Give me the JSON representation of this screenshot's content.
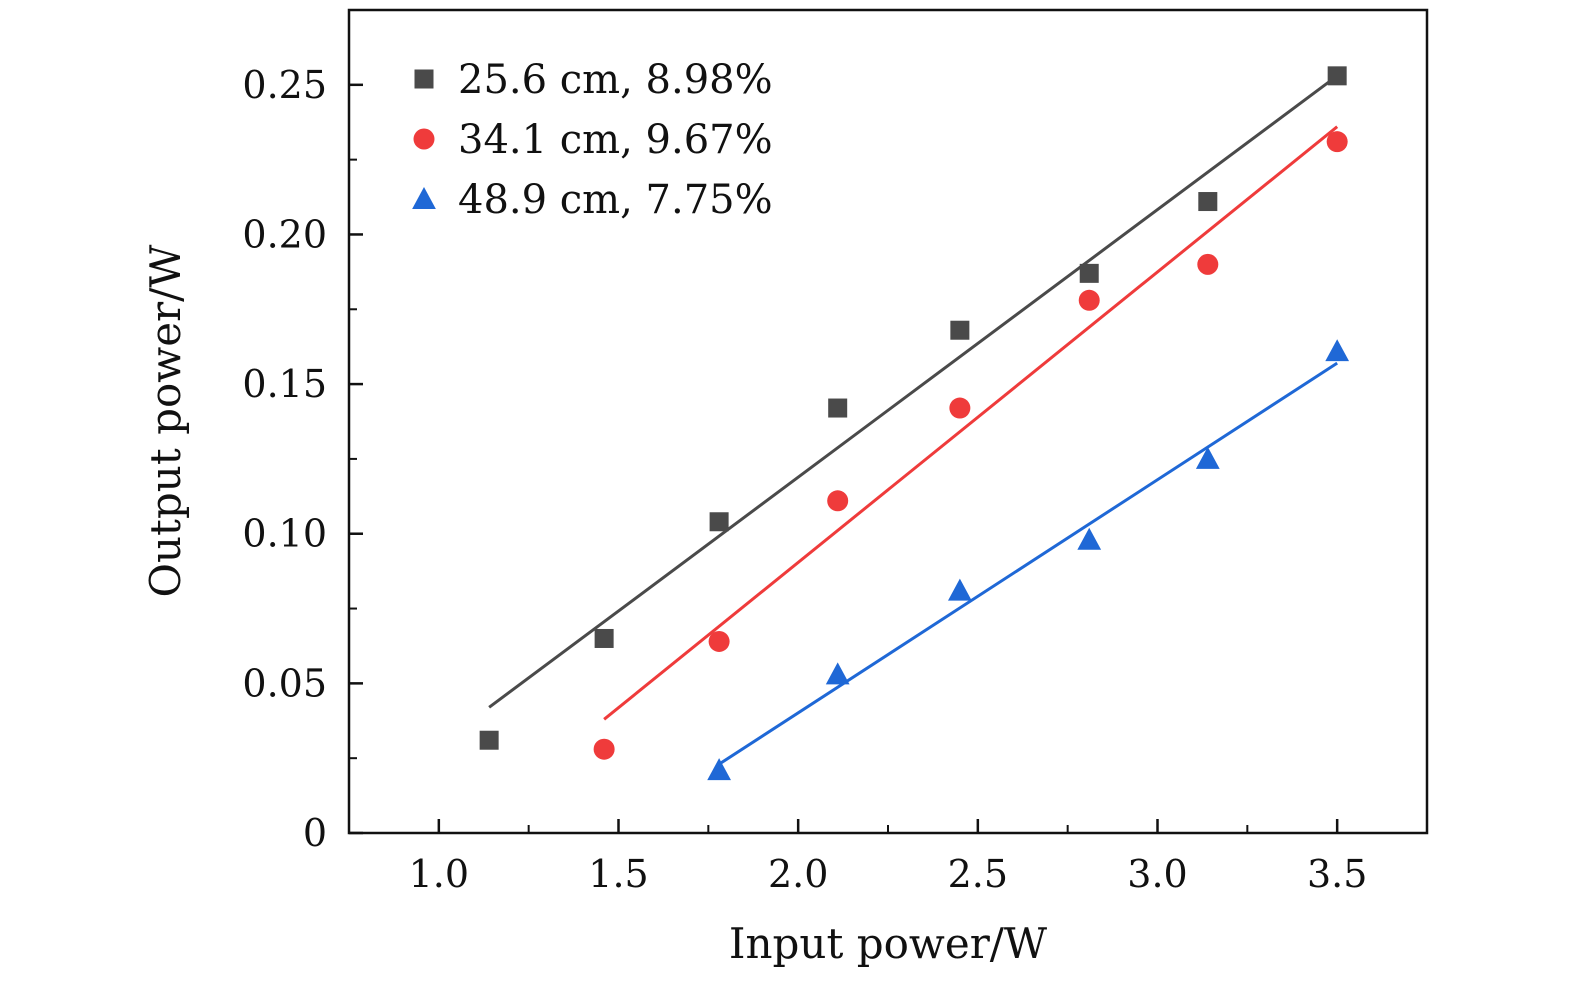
{
  "chart_data": {
    "type": "scatter",
    "title": "",
    "xlabel": "Input power/W",
    "ylabel": "Output power/W",
    "xlim": [
      0.75,
      3.75
    ],
    "ylim": [
      0,
      0.275
    ],
    "x_ticks": [
      1.0,
      1.5,
      2.0,
      2.5,
      3.0,
      3.5
    ],
    "x_tick_labels": [
      "1.0",
      "1.5",
      "2.0",
      "2.5",
      "3.0",
      "3.5"
    ],
    "y_ticks": [
      0,
      0.05,
      0.1,
      0.15,
      0.2,
      0.25
    ],
    "y_tick_labels": [
      "0",
      "0.05",
      "0.10",
      "0.15",
      "0.20",
      "0.25"
    ],
    "grid": false,
    "legend_position": "top-left",
    "series": [
      {
        "name": "25.6 cm, 8.98%",
        "marker": "square",
        "color": "#4a4a4a",
        "x": [
          1.14,
          1.46,
          1.78,
          2.11,
          2.45,
          2.81,
          3.14,
          3.5
        ],
        "y": [
          0.031,
          0.065,
          0.104,
          0.142,
          0.168,
          0.187,
          0.211,
          0.253
        ],
        "fit": {
          "x": [
            1.14,
            3.5
          ],
          "y": [
            0.042,
            0.253
          ]
        }
      },
      {
        "name": "34.1 cm, 9.67%",
        "marker": "circle",
        "color": "#ef3b3b",
        "x": [
          1.46,
          1.78,
          2.11,
          2.45,
          2.81,
          3.14,
          3.5
        ],
        "y": [
          0.028,
          0.064,
          0.111,
          0.142,
          0.178,
          0.19,
          0.231
        ],
        "fit": {
          "x": [
            1.46,
            3.5
          ],
          "y": [
            0.038,
            0.236
          ]
        }
      },
      {
        "name": "48.9 cm, 7.75%",
        "marker": "triangle",
        "color": "#1f68d6",
        "x": [
          1.78,
          2.11,
          2.45,
          2.81,
          3.14,
          3.5
        ],
        "y": [
          0.021,
          0.053,
          0.081,
          0.098,
          0.125,
          0.161
        ],
        "fit": {
          "x": [
            1.78,
            3.5
          ],
          "y": [
            0.023,
            0.157
          ]
        }
      }
    ]
  }
}
